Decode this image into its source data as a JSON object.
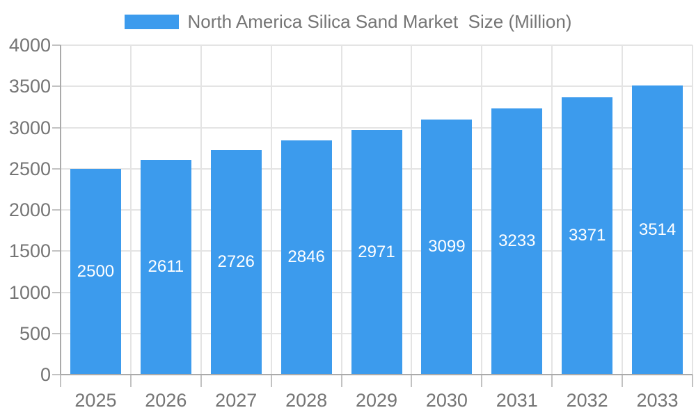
{
  "chart_data": {
    "type": "bar",
    "title": "North America Silica Sand Market  Size (Million)",
    "categories": [
      "2025",
      "2026",
      "2027",
      "2028",
      "2029",
      "2030",
      "2031",
      "2032",
      "2033"
    ],
    "values": [
      2500,
      2611,
      2726,
      2846,
      2971,
      3099,
      3233,
      3371,
      3514
    ],
    "xlabel": "",
    "ylabel": "",
    "ylim": [
      0,
      4000
    ],
    "ytick_step": 500,
    "yticks": [
      0,
      500,
      1000,
      1500,
      2000,
      2500,
      3000,
      3500,
      4000
    ],
    "grid": true,
    "legend_position": "top",
    "bar_labels_inside": true,
    "colors": {
      "bar": "#3C9BED",
      "bar_label": "#FFFFFF",
      "axis_line": "#AAAAAA",
      "tick": "#C2C2C2",
      "grid": "#E4E4E4",
      "text": "#757575",
      "background": "#FFFFFF"
    }
  }
}
